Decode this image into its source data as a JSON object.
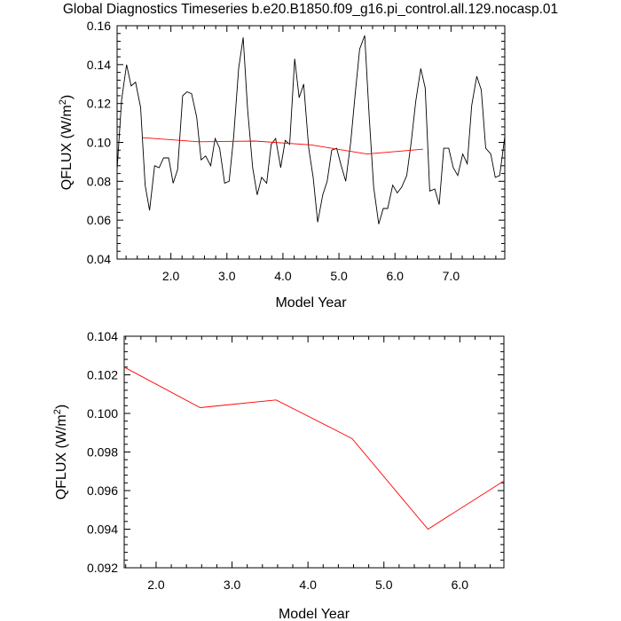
{
  "title": "Global Diagnostics Timeseries b.e20.B1850.f09_g16.pi_control.all.129.nocasp.01",
  "colors": {
    "monthly": "#000000",
    "annual": "#ff0000"
  },
  "chart_data": [
    {
      "type": "line",
      "title": "Global Diagnostics Timeseries b.e20.B1850.f09_g16.pi_control.all.129.nocasp.01",
      "xlabel": "Model Year",
      "ylabel": "QFLUX (W/m",
      "ylabel_sup": "2",
      "ylabel_end": ")",
      "xlim": [
        1.04,
        7.96
      ],
      "ylim": [
        0.04,
        0.16
      ],
      "xticks": [
        2.0,
        3.0,
        4.0,
        5.0,
        6.0,
        7.0
      ],
      "xtick_labels": [
        "2.0",
        "3.0",
        "4.0",
        "5.0",
        "6.0",
        "7.0"
      ],
      "yticks": [
        0.04,
        0.06,
        0.08,
        0.1,
        0.12,
        0.14,
        0.16
      ],
      "ytick_labels": [
        "0.04",
        "0.06",
        "0.08",
        "0.10",
        "0.12",
        "0.14",
        "0.16"
      ],
      "series": [
        {
          "name": "monthly",
          "x": [
            1.04,
            1.12,
            1.21,
            1.29,
            1.37,
            1.46,
            1.54,
            1.62,
            1.71,
            1.79,
            1.87,
            1.96,
            2.04,
            2.12,
            2.21,
            2.29,
            2.37,
            2.46,
            2.54,
            2.62,
            2.71,
            2.79,
            2.87,
            2.96,
            3.04,
            3.12,
            3.21,
            3.29,
            3.37,
            3.46,
            3.54,
            3.62,
            3.71,
            3.79,
            3.87,
            3.96,
            4.04,
            4.12,
            4.21,
            4.29,
            4.37,
            4.46,
            4.54,
            4.62,
            4.71,
            4.79,
            4.87,
            4.96,
            5.04,
            5.12,
            5.21,
            5.29,
            5.37,
            5.46,
            5.54,
            5.62,
            5.71,
            5.79,
            5.87,
            5.96,
            6.04,
            6.12,
            6.21,
            6.29,
            6.37,
            6.46,
            6.54,
            6.62,
            6.71,
            6.79,
            6.87,
            6.96,
            7.04,
            7.12,
            7.21,
            7.29,
            7.37,
            7.46,
            7.54,
            7.62,
            7.71,
            7.79,
            7.87,
            7.96
          ],
          "values": [
            0.086,
            0.122,
            0.14,
            0.129,
            0.131,
            0.118,
            0.078,
            0.065,
            0.088,
            0.087,
            0.092,
            0.092,
            0.079,
            0.086,
            0.124,
            0.126,
            0.125,
            0.113,
            0.091,
            0.093,
            0.088,
            0.102,
            0.097,
            0.079,
            0.08,
            0.103,
            0.138,
            0.154,
            0.117,
            0.087,
            0.073,
            0.082,
            0.079,
            0.099,
            0.102,
            0.087,
            0.101,
            0.099,
            0.143,
            0.123,
            0.13,
            0.097,
            0.082,
            0.059,
            0.073,
            0.08,
            0.096,
            0.097,
            0.088,
            0.08,
            0.1,
            0.125,
            0.148,
            0.155,
            0.113,
            0.077,
            0.058,
            0.066,
            0.066,
            0.078,
            0.074,
            0.077,
            0.083,
            0.1,
            0.121,
            0.138,
            0.128,
            0.075,
            0.076,
            0.068,
            0.097,
            0.097,
            0.087,
            0.083,
            0.094,
            0.089,
            0.119,
            0.134,
            0.127,
            0.097,
            0.094,
            0.082,
            0.083,
            0.103
          ]
        },
        {
          "name": "annual",
          "x": [
            1.5,
            2.5,
            3.5,
            4.5,
            5.5,
            6.5
          ],
          "values": [
            0.1024,
            0.1003,
            0.1007,
            0.0987,
            0.094,
            0.0965
          ]
        }
      ]
    },
    {
      "type": "line",
      "title": "",
      "xlabel": "Model Year",
      "ylabel": "QFLUX (W/m",
      "ylabel_sup": "2",
      "ylabel_end": ")",
      "xlim": [
        1.58,
        6.58
      ],
      "ylim": [
        0.092,
        0.104
      ],
      "xticks": [
        2.0,
        3.0,
        4.0,
        5.0,
        6.0
      ],
      "xtick_labels": [
        "2.0",
        "3.0",
        "4.0",
        "5.0",
        "6.0"
      ],
      "yticks": [
        0.092,
        0.094,
        0.096,
        0.098,
        0.1,
        0.102,
        0.104
      ],
      "ytick_labels": [
        "0.092",
        "0.094",
        "0.096",
        "0.098",
        "0.100",
        "0.102",
        "0.104"
      ],
      "series": [
        {
          "name": "annual",
          "x": [
            1.58,
            2.58,
            3.58,
            4.58,
            5.58,
            6.58
          ],
          "values": [
            0.1024,
            0.1003,
            0.1007,
            0.0987,
            0.094,
            0.0965
          ]
        }
      ]
    }
  ]
}
